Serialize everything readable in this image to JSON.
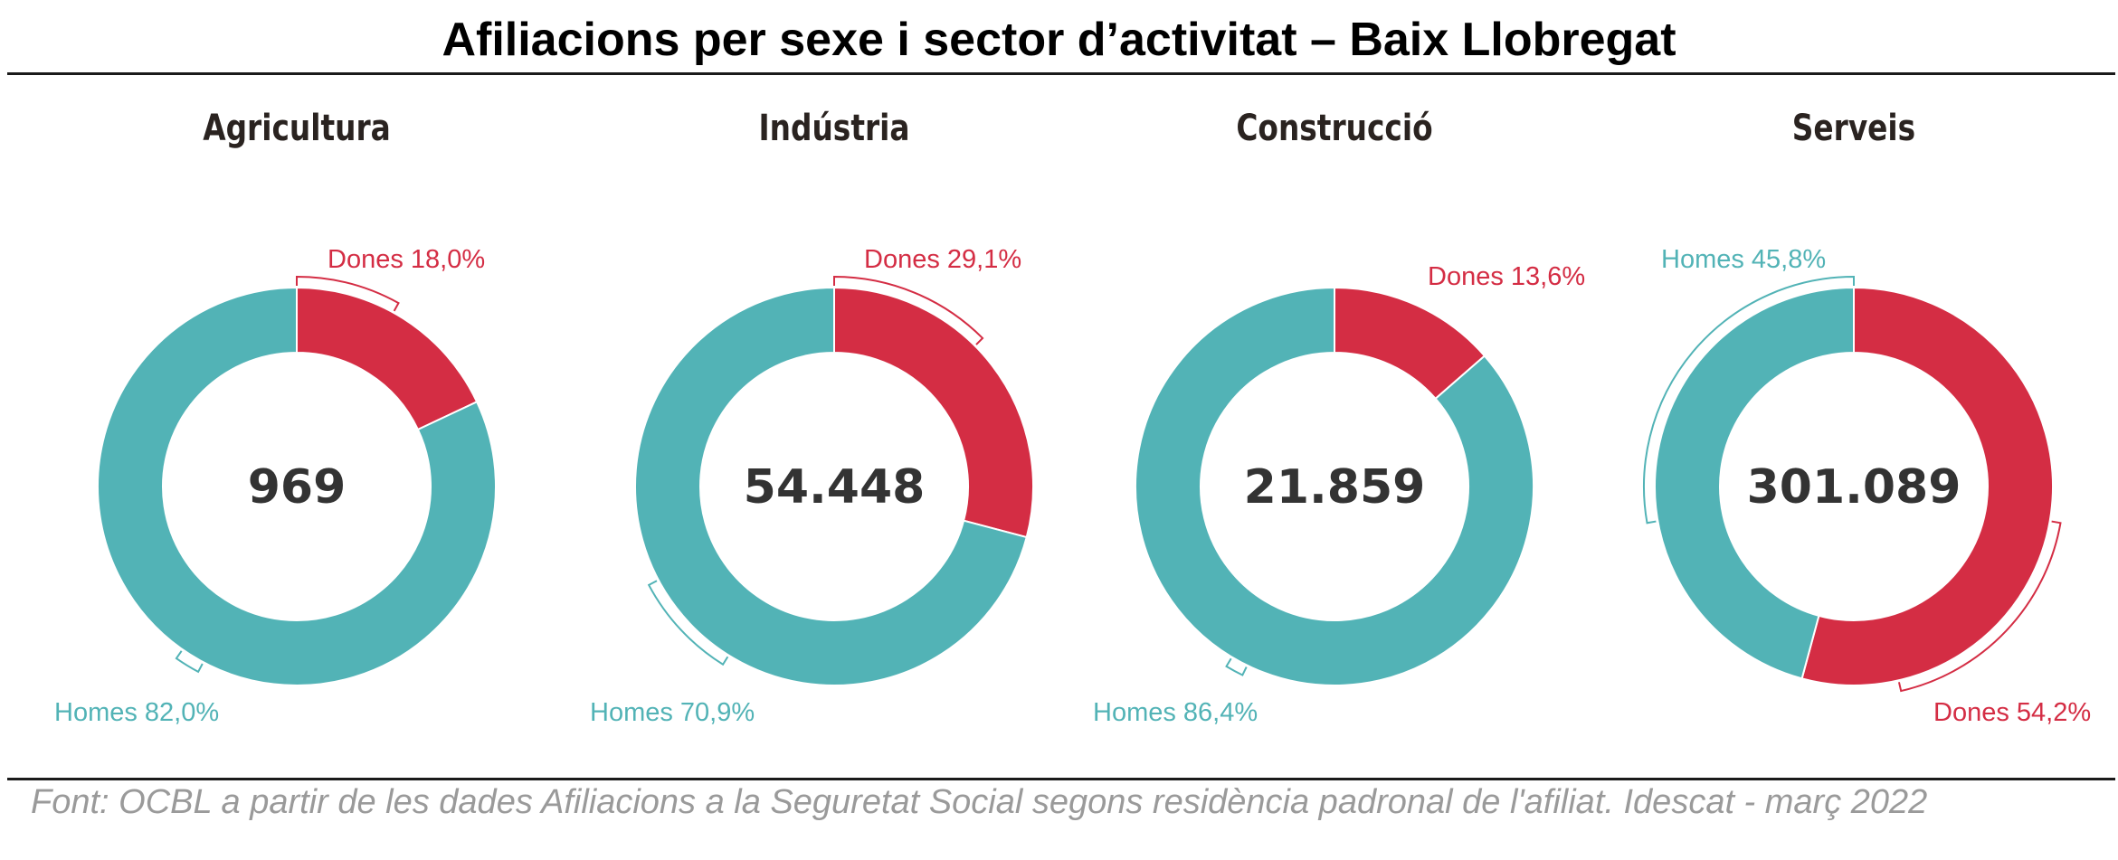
{
  "title": "Afiliacions per sexe i sector d’activitat – Baix Llobregat",
  "source": "Font: OCBL a partir de les dades Afiliacions a la Seguretat Social segons residència padronal de l'afiliat. Idescat - març 2022",
  "colors": {
    "dones": "#d42d44",
    "homes": "#52b3b6",
    "total_text": "#333333",
    "heading_text": "#2a2320"
  },
  "chart_data": [
    {
      "type": "pie",
      "title": "Agricultura",
      "total_label": "969",
      "series": [
        {
          "name": "Dones",
          "value": 18.0,
          "label": "Dones 18,0%"
        },
        {
          "name": "Homes",
          "value": 82.0,
          "label": "Homes 82,0%"
        }
      ]
    },
    {
      "type": "pie",
      "title": "Indústria",
      "total_label": "54.448",
      "series": [
        {
          "name": "Dones",
          "value": 29.1,
          "label": "Dones 29,1%"
        },
        {
          "name": "Homes",
          "value": 70.9,
          "label": "Homes 70,9%"
        }
      ]
    },
    {
      "type": "pie",
      "title": "Construcció",
      "total_label": "21.859",
      "series": [
        {
          "name": "Dones",
          "value": 13.6,
          "label": "Dones 13,6%"
        },
        {
          "name": "Homes",
          "value": 86.4,
          "label": "Homes 86,4%"
        }
      ]
    },
    {
      "type": "pie",
      "title": "Serveis",
      "total_label": "301.089",
      "series": [
        {
          "name": "Dones",
          "value": 54.2,
          "label": "Dones 54,2%"
        },
        {
          "name": "Homes",
          "value": 45.8,
          "label": "Homes 45,8%"
        }
      ]
    }
  ]
}
